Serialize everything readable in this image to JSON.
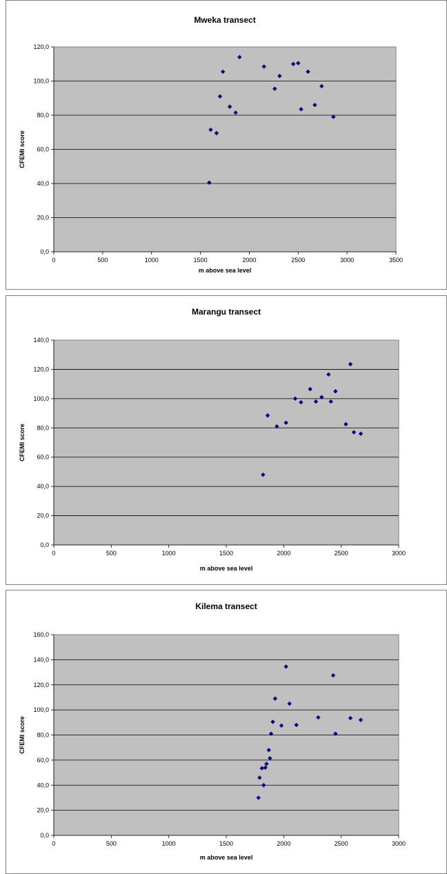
{
  "chart_data": [
    {
      "type": "scatter",
      "title": "Mweka transect",
      "xlabel": "m above sea level",
      "ylabel": "CFEMI score",
      "xlim": [
        0,
        3500
      ],
      "ylim": [
        0,
        120
      ],
      "xticks": [
        "0",
        "500",
        "1000",
        "1500",
        "2000",
        "2500",
        "3000",
        "3500"
      ],
      "yticks": [
        "0,0",
        "20,0",
        "40,0",
        "60,0",
        "80,0",
        "100,0",
        "120,0"
      ],
      "grid": "horizontal",
      "marker_color": "#000080",
      "plot_background": "#c0c0c0",
      "points": [
        {
          "x": 1590,
          "y": 40.5
        },
        {
          "x": 1605,
          "y": 71.5
        },
        {
          "x": 1665,
          "y": 69.5
        },
        {
          "x": 1700,
          "y": 91
        },
        {
          "x": 1730,
          "y": 105.5
        },
        {
          "x": 1800,
          "y": 85
        },
        {
          "x": 1860,
          "y": 81.5
        },
        {
          "x": 1900,
          "y": 114
        },
        {
          "x": 2150,
          "y": 108.5
        },
        {
          "x": 2260,
          "y": 95.5
        },
        {
          "x": 2310,
          "y": 103
        },
        {
          "x": 2450,
          "y": 110
        },
        {
          "x": 2500,
          "y": 110.5
        },
        {
          "x": 2530,
          "y": 83.5
        },
        {
          "x": 2600,
          "y": 105.5
        },
        {
          "x": 2670,
          "y": 86
        },
        {
          "x": 2740,
          "y": 97
        },
        {
          "x": 2860,
          "y": 79
        }
      ]
    },
    {
      "type": "scatter",
      "title": "Marangu transect",
      "xlabel": "m above sea level",
      "ylabel": "CFEMI score",
      "xlim": [
        0,
        3000
      ],
      "ylim": [
        0,
        140
      ],
      "xticks": [
        "0",
        "500",
        "1000",
        "1500",
        "2000",
        "2500",
        "3000"
      ],
      "yticks": [
        "0,0",
        "20,0",
        "40,0",
        "60,0",
        "80,0",
        "100,0",
        "120,0",
        "140,0"
      ],
      "grid": "horizontal",
      "marker_color": "#000080",
      "plot_background": "#c0c0c0",
      "points": [
        {
          "x": 1820,
          "y": 48
        },
        {
          "x": 1860,
          "y": 88.5
        },
        {
          "x": 1940,
          "y": 81
        },
        {
          "x": 2020,
          "y": 83.5
        },
        {
          "x": 2100,
          "y": 100
        },
        {
          "x": 2150,
          "y": 97.5
        },
        {
          "x": 2230,
          "y": 106.5
        },
        {
          "x": 2280,
          "y": 98
        },
        {
          "x": 2330,
          "y": 101
        },
        {
          "x": 2390,
          "y": 116.5
        },
        {
          "x": 2410,
          "y": 98
        },
        {
          "x": 2450,
          "y": 105
        },
        {
          "x": 2540,
          "y": 82.5
        },
        {
          "x": 2580,
          "y": 123.5
        },
        {
          "x": 2610,
          "y": 77
        },
        {
          "x": 2670,
          "y": 76
        }
      ]
    },
    {
      "type": "scatter",
      "title": "Kilema transect",
      "xlabel": "m above sea level",
      "ylabel": "CFEMI score",
      "xlim": [
        0,
        3000
      ],
      "ylim": [
        0,
        160
      ],
      "xticks": [
        "0",
        "500",
        "1000",
        "1500",
        "2000",
        "2500",
        "3000"
      ],
      "yticks": [
        "0,0",
        "20,0",
        "40,0",
        "60,0",
        "80,0",
        "100,0",
        "120,0",
        "140,0",
        "160,0"
      ],
      "grid": "horizontal",
      "marker_color": "#000080",
      "plot_background": "#c0c0c0",
      "points": [
        {
          "x": 1780,
          "y": 30
        },
        {
          "x": 1790,
          "y": 46
        },
        {
          "x": 1810,
          "y": 53.5
        },
        {
          "x": 1825,
          "y": 40
        },
        {
          "x": 1840,
          "y": 54
        },
        {
          "x": 1850,
          "y": 57
        },
        {
          "x": 1870,
          "y": 68
        },
        {
          "x": 1880,
          "y": 61.5
        },
        {
          "x": 1890,
          "y": 81
        },
        {
          "x": 1905,
          "y": 90.5
        },
        {
          "x": 1925,
          "y": 109
        },
        {
          "x": 1980,
          "y": 87.5
        },
        {
          "x": 2020,
          "y": 134.5
        },
        {
          "x": 2050,
          "y": 105
        },
        {
          "x": 2110,
          "y": 88
        },
        {
          "x": 2300,
          "y": 94
        },
        {
          "x": 2430,
          "y": 127.5
        },
        {
          "x": 2450,
          "y": 81
        },
        {
          "x": 2580,
          "y": 93.5
        },
        {
          "x": 2670,
          "y": 92
        }
      ]
    }
  ]
}
